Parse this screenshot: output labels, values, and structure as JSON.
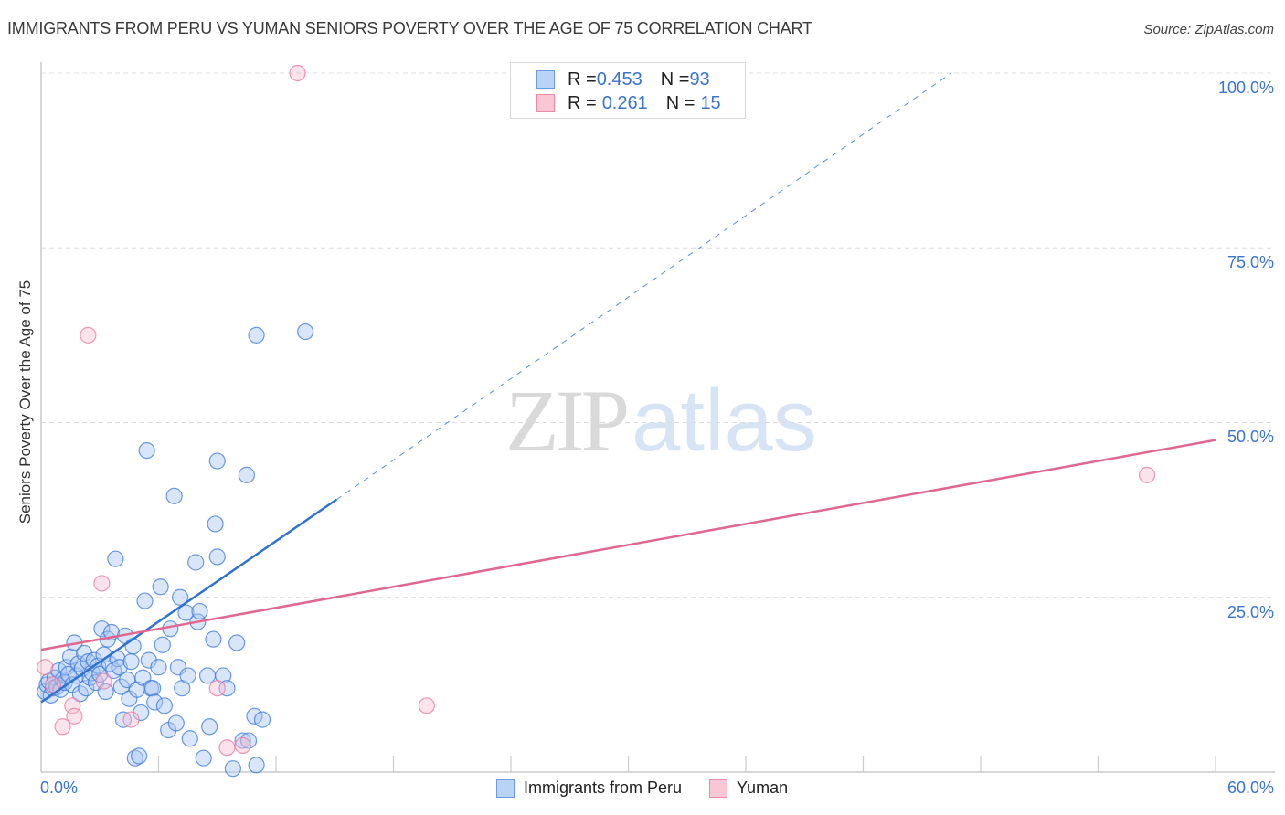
{
  "header": {
    "title": "IMMIGRANTS FROM PERU VS YUMAN SENIORS POVERTY OVER THE AGE OF 75 CORRELATION CHART",
    "source": "Source: ZipAtlas.com"
  },
  "watermark": {
    "zip": "ZIP",
    "atlas": "atlas"
  },
  "legend": {
    "rows": [
      {
        "r_label": "R = ",
        "r_value": "0.453",
        "n_label": "N = ",
        "n_value": "93",
        "color": "#b8d3f4",
        "border": "#6a9be0"
      },
      {
        "r_label": "R = ",
        "r_value": "0.261",
        "n_label": "N = ",
        "n_value": "15",
        "color": "#f9c6d5",
        "border": "#e88aa8"
      }
    ]
  },
  "bottom_legend": {
    "items": [
      {
        "label": "Immigrants from Peru",
        "color": "#b8d3f4",
        "border": "#6a9be0"
      },
      {
        "label": "Yuman",
        "color": "#f9c6d5",
        "border": "#e88aa8"
      }
    ]
  },
  "axes": {
    "ylabel": "Seniors Poverty Over the Age of 75",
    "yticks": [
      "100.0%",
      "75.0%",
      "50.0%",
      "25.0%"
    ],
    "xtick_left": "0.0%",
    "xtick_right": "60.0%"
  },
  "colors": {
    "blue": "#2f72d0",
    "pink": "#e06890",
    "tick_text": "#3b74cc",
    "grid": "#dddddd"
  },
  "chart_data": {
    "type": "scatter",
    "title": "IMMIGRANTS FROM PERU VS YUMAN SENIORS POVERTY OVER THE AGE OF 75 CORRELATION CHART",
    "xlabel": "Immigrants from Peru",
    "ylabel": "Seniors Poverty Over the Age of 75",
    "xlim": [
      0,
      60
    ],
    "ylim": [
      0,
      100
    ],
    "x_ticks": [
      "0.0%",
      "60.0%"
    ],
    "y_ticks": [
      "25.0%",
      "50.0%",
      "75.0%",
      "100.0%"
    ],
    "grid": true,
    "legend_position": "top-center",
    "series": [
      {
        "name": "Immigrants from Peru",
        "r": 0.453,
        "n": 93,
        "color": "#b8d3f4",
        "trendline": {
          "x": [
            0,
            15.1
          ],
          "y": [
            10.0,
            39.0
          ],
          "extended_to": [
            46.5,
            100
          ]
        },
        "points": [
          [
            0.2,
            11.5
          ],
          [
            0.3,
            12.5
          ],
          [
            0.4,
            13.0
          ],
          [
            0.5,
            11.0
          ],
          [
            0.6,
            12.0
          ],
          [
            0.7,
            13.5
          ],
          [
            0.8,
            12.2
          ],
          [
            0.9,
            14.5
          ],
          [
            1.0,
            11.8
          ],
          [
            1.1,
            13.2
          ],
          [
            1.2,
            12.8
          ],
          [
            1.3,
            15.0
          ],
          [
            1.4,
            14.0
          ],
          [
            1.5,
            16.5
          ],
          [
            1.6,
            12.5
          ],
          [
            1.7,
            18.5
          ],
          [
            1.8,
            13.8
          ],
          [
            1.9,
            15.5
          ],
          [
            2.0,
            11.2
          ],
          [
            2.1,
            14.8
          ],
          [
            2.2,
            17.0
          ],
          [
            2.3,
            12.0
          ],
          [
            2.4,
            15.8
          ],
          [
            2.5,
            13.5
          ],
          [
            2.6,
            14.2
          ],
          [
            2.7,
            16.0
          ],
          [
            2.8,
            12.8
          ],
          [
            2.9,
            15.2
          ],
          [
            3.0,
            14.0
          ],
          [
            3.1,
            20.5
          ],
          [
            3.2,
            16.8
          ],
          [
            3.3,
            11.5
          ],
          [
            3.4,
            19.0
          ],
          [
            3.5,
            15.5
          ],
          [
            3.6,
            20.0
          ],
          [
            3.7,
            14.5
          ],
          [
            3.8,
            30.5
          ],
          [
            3.9,
            16.2
          ],
          [
            4.0,
            15.0
          ],
          [
            4.1,
            12.2
          ],
          [
            4.2,
            7.5
          ],
          [
            4.3,
            19.5
          ],
          [
            4.4,
            13.2
          ],
          [
            4.5,
            10.5
          ],
          [
            4.6,
            15.8
          ],
          [
            4.7,
            18.0
          ],
          [
            4.8,
            2.0
          ],
          [
            4.9,
            11.8
          ],
          [
            5.0,
            2.3
          ],
          [
            5.1,
            8.5
          ],
          [
            5.2,
            13.5
          ],
          [
            5.3,
            24.5
          ],
          [
            5.4,
            46.0
          ],
          [
            5.5,
            16.0
          ],
          [
            5.6,
            12.0
          ],
          [
            5.7,
            12.0
          ],
          [
            5.8,
            10.0
          ],
          [
            6.0,
            15.0
          ],
          [
            6.1,
            26.5
          ],
          [
            6.2,
            18.2
          ],
          [
            6.3,
            9.5
          ],
          [
            6.5,
            6.0
          ],
          [
            6.6,
            20.5
          ],
          [
            6.8,
            39.5
          ],
          [
            6.9,
            7.0
          ],
          [
            7.0,
            15.0
          ],
          [
            7.1,
            25.0
          ],
          [
            7.2,
            12.0
          ],
          [
            7.4,
            22.8
          ],
          [
            7.5,
            13.8
          ],
          [
            7.6,
            4.8
          ],
          [
            7.9,
            30.0
          ],
          [
            8.0,
            21.5
          ],
          [
            8.1,
            23.0
          ],
          [
            8.3,
            2.0
          ],
          [
            8.5,
            13.8
          ],
          [
            8.6,
            6.5
          ],
          [
            8.8,
            19.0
          ],
          [
            8.9,
            35.5
          ],
          [
            9.0,
            44.5
          ],
          [
            9.0,
            30.8
          ],
          [
            9.3,
            13.8
          ],
          [
            9.5,
            12.0
          ],
          [
            9.8,
            0.5
          ],
          [
            10.0,
            18.5
          ],
          [
            10.3,
            4.5
          ],
          [
            10.5,
            42.5
          ],
          [
            11.0,
            1.0
          ],
          [
            10.9,
            8.0
          ],
          [
            11.3,
            7.5
          ],
          [
            10.6,
            4.5
          ],
          [
            11.0,
            62.5
          ],
          [
            13.5,
            63.0
          ]
        ]
      },
      {
        "name": "Yuman",
        "r": 0.261,
        "n": 15,
        "color": "#f9c6d5",
        "trendline": {
          "x": [
            0,
            60
          ],
          "y": [
            17.5,
            47.5
          ]
        },
        "points": [
          [
            0.2,
            15.0
          ],
          [
            0.6,
            12.5
          ],
          [
            1.1,
            6.5
          ],
          [
            1.6,
            9.5
          ],
          [
            1.7,
            8.0
          ],
          [
            2.4,
            62.5
          ],
          [
            3.1,
            27.0
          ],
          [
            3.2,
            13.0
          ],
          [
            4.6,
            7.5
          ],
          [
            9.0,
            12.0
          ],
          [
            9.5,
            3.5
          ],
          [
            10.3,
            3.8
          ],
          [
            13.1,
            100.0
          ],
          [
            19.7,
            9.5
          ],
          [
            56.5,
            42.5
          ]
        ]
      }
    ]
  }
}
